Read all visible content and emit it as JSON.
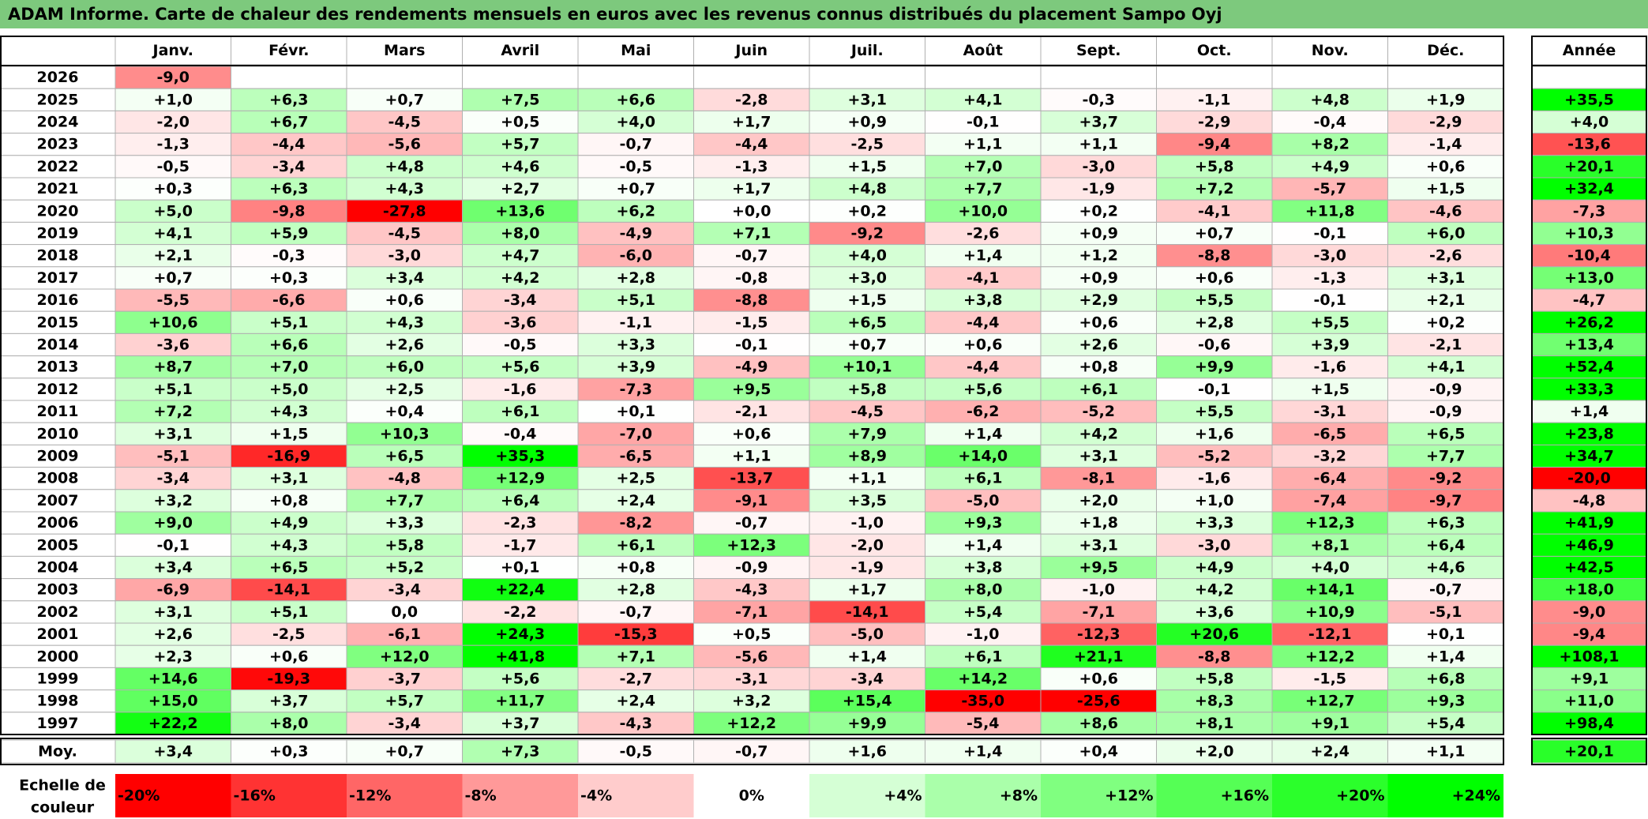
{
  "title": "ADAM Informe. Carte de chaleur des rendements mensuels en euros avec les revenus connus distribués du placement Sampo Oyj",
  "colors": {
    "title_bg": "#7dc97d",
    "positive": "#00ff00",
    "negative": "#ff0000",
    "neutral": "#ffffff",
    "grid": "#b0b0b0",
    "frame": "#000000"
  },
  "chart_data": {
    "type": "heatmap",
    "title": "ADAM Informe. Carte de chaleur des rendements mensuels en euros avec les revenus connus distribués du placement Sampo Oyj",
    "months": [
      "Janv.",
      "Févr.",
      "Mars",
      "Avril",
      "Mai",
      "Juin",
      "Juil.",
      "Août",
      "Sept.",
      "Oct.",
      "Nov.",
      "Déc."
    ],
    "year_column_label": "Année",
    "rows": [
      {
        "year": "2026",
        "months": [
          "-9,0",
          "",
          "",
          "",
          "",
          "",
          "",
          "",
          "",
          "",
          "",
          ""
        ],
        "annual": ""
      },
      {
        "year": "2025",
        "months": [
          "+1,0",
          "+6,3",
          "+0,7",
          "+7,5",
          "+6,6",
          "-2,8",
          "+3,1",
          "+4,1",
          "-0,3",
          "-1,1",
          "+4,8",
          "+1,9"
        ],
        "annual": "+35,5"
      },
      {
        "year": "2024",
        "months": [
          "-2,0",
          "+6,7",
          "-4,5",
          "+0,5",
          "+4,0",
          "+1,7",
          "+0,9",
          "-0,1",
          "+3,7",
          "-2,9",
          "-0,4",
          "-2,9"
        ],
        "annual": "+4,0"
      },
      {
        "year": "2023",
        "months": [
          "-1,3",
          "-4,4",
          "-5,6",
          "+5,7",
          "-0,7",
          "-4,4",
          "-2,5",
          "+1,1",
          "+1,1",
          "-9,4",
          "+8,2",
          "-1,4"
        ],
        "annual": "-13,6"
      },
      {
        "year": "2022",
        "months": [
          "-0,5",
          "-3,4",
          "+4,8",
          "+4,6",
          "-0,5",
          "-1,3",
          "+1,5",
          "+7,0",
          "-3,0",
          "+5,8",
          "+4,9",
          "+0,6"
        ],
        "annual": "+20,1"
      },
      {
        "year": "2021",
        "months": [
          "+0,3",
          "+6,3",
          "+4,3",
          "+2,7",
          "+0,7",
          "+1,7",
          "+4,8",
          "+7,7",
          "-1,9",
          "+7,2",
          "-5,7",
          "+1,5"
        ],
        "annual": "+32,4"
      },
      {
        "year": "2020",
        "months": [
          "+5,0",
          "-9,8",
          "-27,8",
          "+13,6",
          "+6,2",
          "+0,0",
          "+0,2",
          "+10,0",
          "+0,2",
          "-4,1",
          "+11,8",
          "-4,6"
        ],
        "annual": "-7,3"
      },
      {
        "year": "2019",
        "months": [
          "+4,1",
          "+5,9",
          "-4,5",
          "+8,0",
          "-4,9",
          "+7,1",
          "-9,2",
          "-2,6",
          "+0,9",
          "+0,7",
          "-0,1",
          "+6,0"
        ],
        "annual": "+10,3"
      },
      {
        "year": "2018",
        "months": [
          "+2,1",
          "-0,3",
          "-3,0",
          "+4,7",
          "-6,0",
          "-0,7",
          "+4,0",
          "+1,4",
          "+1,2",
          "-8,8",
          "-3,0",
          "-2,6"
        ],
        "annual": "-10,4"
      },
      {
        "year": "2017",
        "months": [
          "+0,7",
          "+0,3",
          "+3,4",
          "+4,2",
          "+2,8",
          "-0,8",
          "+3,0",
          "-4,1",
          "+0,9",
          "+0,6",
          "-1,3",
          "+3,1"
        ],
        "annual": "+13,0"
      },
      {
        "year": "2016",
        "months": [
          "-5,5",
          "-6,6",
          "+0,6",
          "-3,4",
          "+5,1",
          "-8,8",
          "+1,5",
          "+3,8",
          "+2,9",
          "+5,5",
          "-0,1",
          "+2,1"
        ],
        "annual": "-4,7"
      },
      {
        "year": "2015",
        "months": [
          "+10,6",
          "+5,1",
          "+4,3",
          "-3,6",
          "-1,1",
          "-1,5",
          "+6,5",
          "-4,4",
          "+0,6",
          "+2,8",
          "+5,5",
          "+0,2"
        ],
        "annual": "+26,2"
      },
      {
        "year": "2014",
        "months": [
          "-3,6",
          "+6,6",
          "+2,6",
          "-0,5",
          "+3,3",
          "-0,1",
          "+0,7",
          "+0,6",
          "+2,6",
          "-0,6",
          "+3,9",
          "-2,1"
        ],
        "annual": "+13,4"
      },
      {
        "year": "2013",
        "months": [
          "+8,7",
          "+7,0",
          "+6,0",
          "+5,6",
          "+3,9",
          "-4,9",
          "+10,1",
          "-4,4",
          "+0,8",
          "+9,9",
          "-1,6",
          "+4,1"
        ],
        "annual": "+52,4"
      },
      {
        "year": "2012",
        "months": [
          "+5,1",
          "+5,0",
          "+2,5",
          "-1,6",
          "-7,3",
          "+9,5",
          "+5,8",
          "+5,6",
          "+6,1",
          "-0,1",
          "+1,5",
          "-0,9"
        ],
        "annual": "+33,3"
      },
      {
        "year": "2011",
        "months": [
          "+7,2",
          "+4,3",
          "+0,4",
          "+6,1",
          "+0,1",
          "-2,1",
          "-4,5",
          "-6,2",
          "-5,2",
          "+5,5",
          "-3,1",
          "-0,9"
        ],
        "annual": "+1,4"
      },
      {
        "year": "2010",
        "months": [
          "+3,1",
          "+1,5",
          "+10,3",
          "-0,4",
          "-7,0",
          "+0,6",
          "+7,9",
          "+1,4",
          "+4,2",
          "+1,6",
          "-6,5",
          "+6,5"
        ],
        "annual": "+23,8"
      },
      {
        "year": "2009",
        "months": [
          "-5,1",
          "-16,9",
          "+6,5",
          "+35,3",
          "-6,5",
          "+1,1",
          "+8,9",
          "+14,0",
          "+3,1",
          "-5,2",
          "-3,2",
          "+7,7"
        ],
        "annual": "+34,7"
      },
      {
        "year": "2008",
        "months": [
          "-3,4",
          "+3,1",
          "-4,8",
          "+12,9",
          "+2,5",
          "-13,7",
          "+1,1",
          "+6,1",
          "-8,1",
          "-1,6",
          "-6,4",
          "-9,2"
        ],
        "annual": "-20,0"
      },
      {
        "year": "2007",
        "months": [
          "+3,2",
          "+0,8",
          "+7,7",
          "+6,4",
          "+2,4",
          "-9,1",
          "+3,5",
          "-5,0",
          "+2,0",
          "+1,0",
          "-7,4",
          "-9,7"
        ],
        "annual": "-4,8"
      },
      {
        "year": "2006",
        "months": [
          "+9,0",
          "+4,9",
          "+3,3",
          "-2,3",
          "-8,2",
          "-0,7",
          "-1,0",
          "+9,3",
          "+1,8",
          "+3,3",
          "+12,3",
          "+6,3"
        ],
        "annual": "+41,9"
      },
      {
        "year": "2005",
        "months": [
          "-0,1",
          "+4,3",
          "+5,8",
          "-1,7",
          "+6,1",
          "+12,3",
          "-2,0",
          "+1,4",
          "+3,1",
          "-3,0",
          "+8,1",
          "+6,4"
        ],
        "annual": "+46,9"
      },
      {
        "year": "2004",
        "months": [
          "+3,4",
          "+6,5",
          "+5,2",
          "+0,1",
          "+0,8",
          "-0,9",
          "-1,9",
          "+3,8",
          "+9,5",
          "+4,9",
          "+4,0",
          "+4,6"
        ],
        "annual": "+42,5"
      },
      {
        "year": "2003",
        "months": [
          "-6,9",
          "-14,1",
          "-3,4",
          "+22,4",
          "+2,8",
          "-4,3",
          "+1,7",
          "+8,0",
          "-1,0",
          "+4,2",
          "+14,1",
          "-0,7"
        ],
        "annual": "+18,0"
      },
      {
        "year": "2002",
        "months": [
          "+3,1",
          "+5,1",
          "0,0",
          "-2,2",
          "-0,7",
          "-7,1",
          "-14,1",
          "+5,4",
          "-7,1",
          "+3,6",
          "+10,9",
          "-5,1"
        ],
        "annual": "-9,0"
      },
      {
        "year": "2001",
        "months": [
          "+2,6",
          "-2,5",
          "-6,1",
          "+24,3",
          "-15,3",
          "+0,5",
          "-5,0",
          "-1,0",
          "-12,3",
          "+20,6",
          "-12,1",
          "+0,1"
        ],
        "annual": "-9,4"
      },
      {
        "year": "2000",
        "months": [
          "+2,3",
          "+0,6",
          "+12,0",
          "+41,8",
          "+7,1",
          "-5,6",
          "+1,4",
          "+6,1",
          "+21,1",
          "-8,8",
          "+12,2",
          "+1,4"
        ],
        "annual": "+108,1"
      },
      {
        "year": "1999",
        "months": [
          "+14,6",
          "-19,3",
          "-3,7",
          "+5,6",
          "-2,7",
          "-3,1",
          "-3,4",
          "+14,2",
          "+0,6",
          "+5,8",
          "-1,5",
          "+6,8"
        ],
        "annual": "+9,1"
      },
      {
        "year": "1998",
        "months": [
          "+15,0",
          "+3,7",
          "+5,7",
          "+11,7",
          "+2,4",
          "+3,2",
          "+15,4",
          "-35,0",
          "-25,6",
          "+8,3",
          "+12,7",
          "+9,3"
        ],
        "annual": "+11,0"
      },
      {
        "year": "1997",
        "months": [
          "+22,2",
          "+8,0",
          "-3,4",
          "+3,7",
          "-4,3",
          "+12,2",
          "+9,9",
          "-5,4",
          "+8,6",
          "+8,1",
          "+9,1",
          "+5,4"
        ],
        "annual": "+98,4"
      }
    ],
    "average": {
      "label": "Moy.",
      "months": [
        "+3,4",
        "+0,3",
        "+0,7",
        "+7,3",
        "-0,5",
        "-0,7",
        "+1,6",
        "+1,4",
        "+0,4",
        "+2,0",
        "+2,4",
        "+1,1"
      ],
      "annual": "+20,1"
    },
    "color_scale": {
      "label_line1": "Echelle de",
      "label_line2": "couleur",
      "steps": [
        "-20%",
        "-16%",
        "-12%",
        "-8%",
        "-4%",
        "0%",
        "+4%",
        "+8%",
        "+12%",
        "+16%",
        "+20%",
        "+24%"
      ],
      "values": [
        -20,
        -16,
        -12,
        -8,
        -4,
        0,
        4,
        8,
        12,
        16,
        20,
        24
      ],
      "saturate_negative_at": -20,
      "saturate_positive_at": 24
    }
  }
}
